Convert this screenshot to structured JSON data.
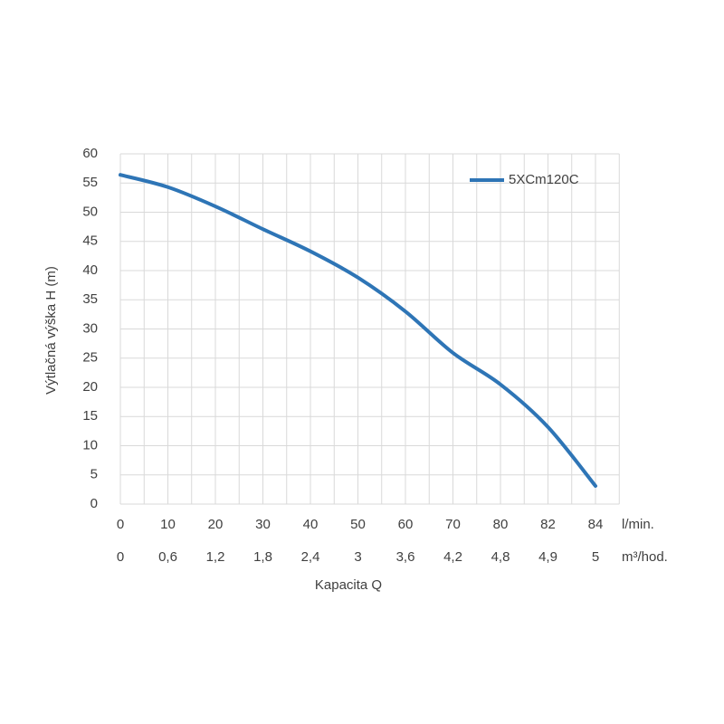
{
  "chart_data": {
    "type": "line",
    "ylabel": "Výtlačná výška H (m)",
    "xlabel": "Kapacita Q",
    "categories": [
      "0",
      "10",
      "20",
      "30",
      "40",
      "50",
      "60",
      "70",
      "80",
      "82",
      "84"
    ],
    "x_unit": "l/min.",
    "categories_2": [
      "0",
      "0,6",
      "1,2",
      "1,8",
      "2,4",
      "3",
      "3,6",
      "4,2",
      "4,8",
      "4,9",
      "5"
    ],
    "x2_unit": "m³/hod.",
    "series": [
      {
        "name": "5XCm120C",
        "color": "#2e75b6",
        "values": [
          56.4,
          54.3,
          51,
          47.1,
          43.3,
          38.8,
          33,
          25.9,
          20.5,
          13.2,
          3.1
        ]
      }
    ],
    "ylim": [
      0,
      60
    ],
    "yticks": [
      0,
      5,
      10,
      15,
      20,
      25,
      30,
      35,
      40,
      45,
      50,
      55,
      60
    ],
    "grid": true
  }
}
